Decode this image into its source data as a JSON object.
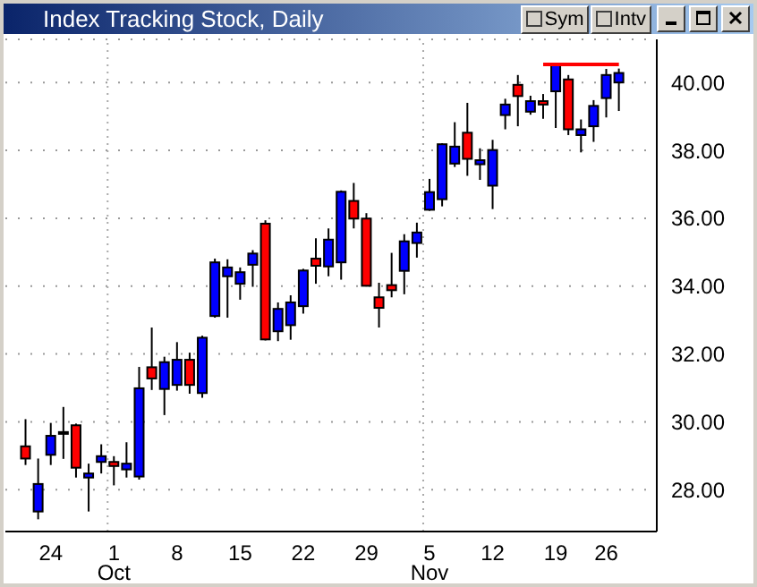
{
  "chart_data": {
    "type": "candlestick",
    "title": "Index Tracking Stock, Daily",
    "categories": [
      null,
      null,
      "24",
      null,
      null,
      null,
      null,
      "1",
      null,
      null,
      null,
      null,
      "8",
      null,
      null,
      null,
      null,
      "15",
      null,
      null,
      null,
      null,
      "22",
      null,
      null,
      null,
      null,
      "29",
      null,
      null,
      null,
      null,
      "5",
      null,
      null,
      null,
      null,
      "12",
      null,
      null,
      null,
      null,
      "19",
      null,
      null,
      null,
      "26",
      null
    ],
    "ohlc": [
      [
        29.28,
        30.08,
        28.73,
        28.92
      ],
      [
        27.36,
        28.92,
        27.13,
        28.17
      ],
      [
        29.03,
        29.97,
        28.73,
        29.59
      ],
      [
        29.68,
        30.44,
        28.91,
        29.7
      ],
      [
        29.9,
        29.95,
        28.36,
        28.65
      ],
      [
        28.36,
        28.77,
        27.36,
        28.48
      ],
      [
        28.82,
        29.34,
        28.48,
        28.99
      ],
      [
        28.82,
        28.99,
        28.13,
        28.7
      ],
      [
        28.6,
        29.4,
        28.36,
        28.77
      ],
      [
        28.39,
        31.62,
        28.3,
        30.99
      ],
      [
        31.61,
        32.78,
        30.94,
        31.28
      ],
      [
        30.97,
        31.92,
        30.2,
        31.76
      ],
      [
        31.09,
        32.35,
        30.92,
        31.83
      ],
      [
        31.83,
        32.04,
        30.83,
        31.09
      ],
      [
        30.85,
        32.54,
        30.71,
        32.48
      ],
      [
        33.12,
        34.81,
        33.07,
        34.7
      ],
      [
        34.29,
        34.79,
        33.07,
        34.55
      ],
      [
        34.07,
        34.55,
        33.6,
        34.41
      ],
      [
        34.63,
        35.06,
        33.98,
        34.96
      ],
      [
        35.84,
        35.94,
        32.4,
        32.43
      ],
      [
        32.67,
        33.52,
        32.38,
        33.33
      ],
      [
        32.85,
        33.73,
        32.42,
        33.52
      ],
      [
        33.41,
        34.51,
        33.19,
        34.46
      ],
      [
        34.81,
        35.41,
        34.07,
        34.6
      ],
      [
        34.58,
        35.7,
        34.29,
        35.37
      ],
      [
        34.7,
        36.82,
        34.19,
        36.78
      ],
      [
        36.51,
        37.04,
        35.7,
        35.99
      ],
      [
        35.99,
        36.15,
        33.99,
        34.01
      ],
      [
        33.67,
        34.1,
        32.78,
        33.36
      ],
      [
        34.03,
        34.98,
        33.67,
        33.88
      ],
      [
        34.45,
        35.53,
        33.76,
        35.32
      ],
      [
        35.27,
        35.87,
        34.84,
        35.58
      ],
      [
        36.25,
        37.16,
        36.22,
        36.77
      ],
      [
        36.56,
        38.21,
        36.35,
        38.18
      ],
      [
        37.61,
        38.83,
        37.51,
        38.11
      ],
      [
        38.52,
        39.4,
        37.25,
        37.75
      ],
      [
        37.59,
        38.06,
        37.13,
        37.71
      ],
      [
        36.96,
        38.31,
        36.27,
        38.01
      ],
      [
        39.04,
        39.52,
        38.62,
        39.35
      ],
      [
        39.93,
        40.22,
        38.71,
        39.6
      ],
      [
        39.14,
        39.61,
        39.05,
        39.45
      ],
      [
        39.45,
        39.66,
        38.93,
        39.35
      ],
      [
        39.74,
        40.55,
        38.66,
        40.52
      ],
      [
        40.09,
        40.22,
        38.45,
        38.62
      ],
      [
        38.45,
        38.91,
        37.94,
        38.62
      ],
      [
        38.71,
        39.48,
        38.25,
        39.31
      ],
      [
        39.54,
        40.4,
        38.97,
        40.22
      ],
      [
        40.0,
        40.41,
        39.16,
        40.28
      ]
    ],
    "colors": [
      "#ff0000",
      "#0000ff",
      "#0000ff",
      "#0000ff",
      "#ff0000",
      "#0000ff",
      "#0000ff",
      "#ff0000",
      "#0000ff",
      "#0000ff",
      "#ff0000",
      "#0000ff",
      "#0000ff",
      "#ff0000",
      "#0000ff",
      "#0000ff",
      "#0000ff",
      "#0000ff",
      "#0000ff",
      "#ff0000",
      "#0000ff",
      "#0000ff",
      "#0000ff",
      "#ff0000",
      "#0000ff",
      "#0000ff",
      "#ff0000",
      "#ff0000",
      "#ff0000",
      "#ff0000",
      "#0000ff",
      "#0000ff",
      "#0000ff",
      "#0000ff",
      "#0000ff",
      "#ff0000",
      "#0000ff",
      "#0000ff",
      "#0000ff",
      "#ff0000",
      "#0000ff",
      "#ff0000",
      "#0000ff",
      "#ff0000",
      "#0000ff",
      "#0000ff",
      "#0000ff",
      "#0000ff"
    ],
    "series": [
      {
        "type": "line",
        "color": "#ff0000",
        "values": [
          null,
          null,
          null,
          null,
          null,
          null,
          null,
          null,
          null,
          null,
          null,
          null,
          null,
          null,
          null,
          null,
          null,
          null,
          null,
          null,
          null,
          null,
          null,
          null,
          null,
          null,
          null,
          null,
          null,
          null,
          null,
          null,
          null,
          null,
          null,
          null,
          null,
          null,
          null,
          null,
          null,
          40.53,
          40.53,
          40.53,
          40.53,
          40.53,
          40.53,
          40.53
        ]
      }
    ],
    "ylim": [
      26.77,
      41.27
    ],
    "yticks": [
      {
        "value": 28,
        "label": "28.00"
      },
      {
        "value": 30,
        "label": "30.00"
      },
      {
        "value": 32,
        "label": "32.00"
      },
      {
        "value": 34,
        "label": "34.00"
      },
      {
        "value": 36,
        "label": "36.00"
      },
      {
        "value": 38,
        "label": "38.00"
      },
      {
        "value": 40,
        "label": "40.00"
      }
    ],
    "grid": true,
    "annotations": [
      "Sym",
      "Intv",
      "Oct",
      "Nov"
    ]
  }
}
